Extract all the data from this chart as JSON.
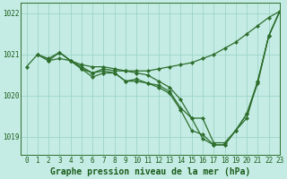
{
  "title": "Graphe pression niveau de la mer (hPa)",
  "bg_color": "#c5ece4",
  "grid_color": "#9dd4c8",
  "line_color": "#2d6e2d",
  "xlim": [
    -0.5,
    23
  ],
  "ylim": [
    1018.55,
    1022.25
  ],
  "yticks": [
    1019,
    1020,
    1021,
    1022
  ],
  "xticks": [
    0,
    1,
    2,
    3,
    4,
    5,
    6,
    7,
    8,
    9,
    10,
    11,
    12,
    13,
    14,
    15,
    16,
    17,
    18,
    19,
    20,
    21,
    22,
    23
  ],
  "series": [
    {
      "x": [
        0,
        1,
        2,
        3,
        4,
        5,
        6,
        7,
        8,
        9,
        10,
        11,
        12,
        13,
        14,
        15,
        16,
        17,
        18,
        19,
        20,
        21,
        22,
        23
      ],
      "y": [
        1020.7,
        1021.0,
        1020.85,
        1020.9,
        1020.85,
        1020.75,
        1020.7,
        1020.7,
        1020.65,
        1020.6,
        1020.6,
        1020.6,
        1020.65,
        1020.7,
        1020.75,
        1020.8,
        1020.9,
        1021.0,
        1021.15,
        1021.3,
        1021.5,
        1021.7,
        1021.9,
        1022.05
      ]
    },
    {
      "x": [
        1,
        2,
        3,
        4,
        5,
        6,
        7,
        8,
        9,
        10,
        11,
        12,
        13,
        14,
        15,
        16,
        17,
        18,
        19,
        20,
        21,
        22,
        23
      ],
      "y": [
        1021.0,
        1020.9,
        1021.05,
        1020.85,
        1020.7,
        1020.55,
        1020.6,
        1020.55,
        1020.35,
        1020.35,
        1020.3,
        1020.25,
        1020.1,
        1019.7,
        1019.45,
        1018.95,
        1018.8,
        1018.8,
        1019.15,
        1019.45,
        1020.35,
        1021.45,
        1022.05
      ]
    },
    {
      "x": [
        1,
        2,
        3,
        4,
        5,
        6,
        7,
        8,
        9,
        10,
        11,
        12,
        13,
        14,
        15,
        16,
        17,
        18,
        19,
        20,
        21,
        22,
        23
      ],
      "y": [
        1021.0,
        1020.85,
        1021.05,
        1020.85,
        1020.65,
        1020.45,
        1020.55,
        1020.55,
        1020.35,
        1020.4,
        1020.3,
        1020.2,
        1020.05,
        1019.65,
        1019.15,
        1019.05,
        1018.8,
        1018.8,
        1019.15,
        1019.55,
        1020.35,
        1021.45,
        1022.05
      ]
    },
    {
      "x": [
        3,
        4,
        5,
        6,
        7,
        8,
        9,
        10,
        11,
        12,
        13,
        14,
        15,
        16,
        17,
        18,
        19,
        20,
        21,
        22,
        23
      ],
      "y": [
        1021.05,
        1020.85,
        1020.65,
        1020.55,
        1020.65,
        1020.6,
        1020.6,
        1020.55,
        1020.5,
        1020.35,
        1020.2,
        1019.9,
        1019.45,
        1019.45,
        1018.85,
        1018.85,
        1019.15,
        1019.55,
        1020.3,
        1021.45,
        1022.05
      ]
    }
  ],
  "label_fontsize": 7,
  "tick_fontsize": 5.5,
  "label_color": "#1a5c1a",
  "tick_color": "#1a5c1a"
}
